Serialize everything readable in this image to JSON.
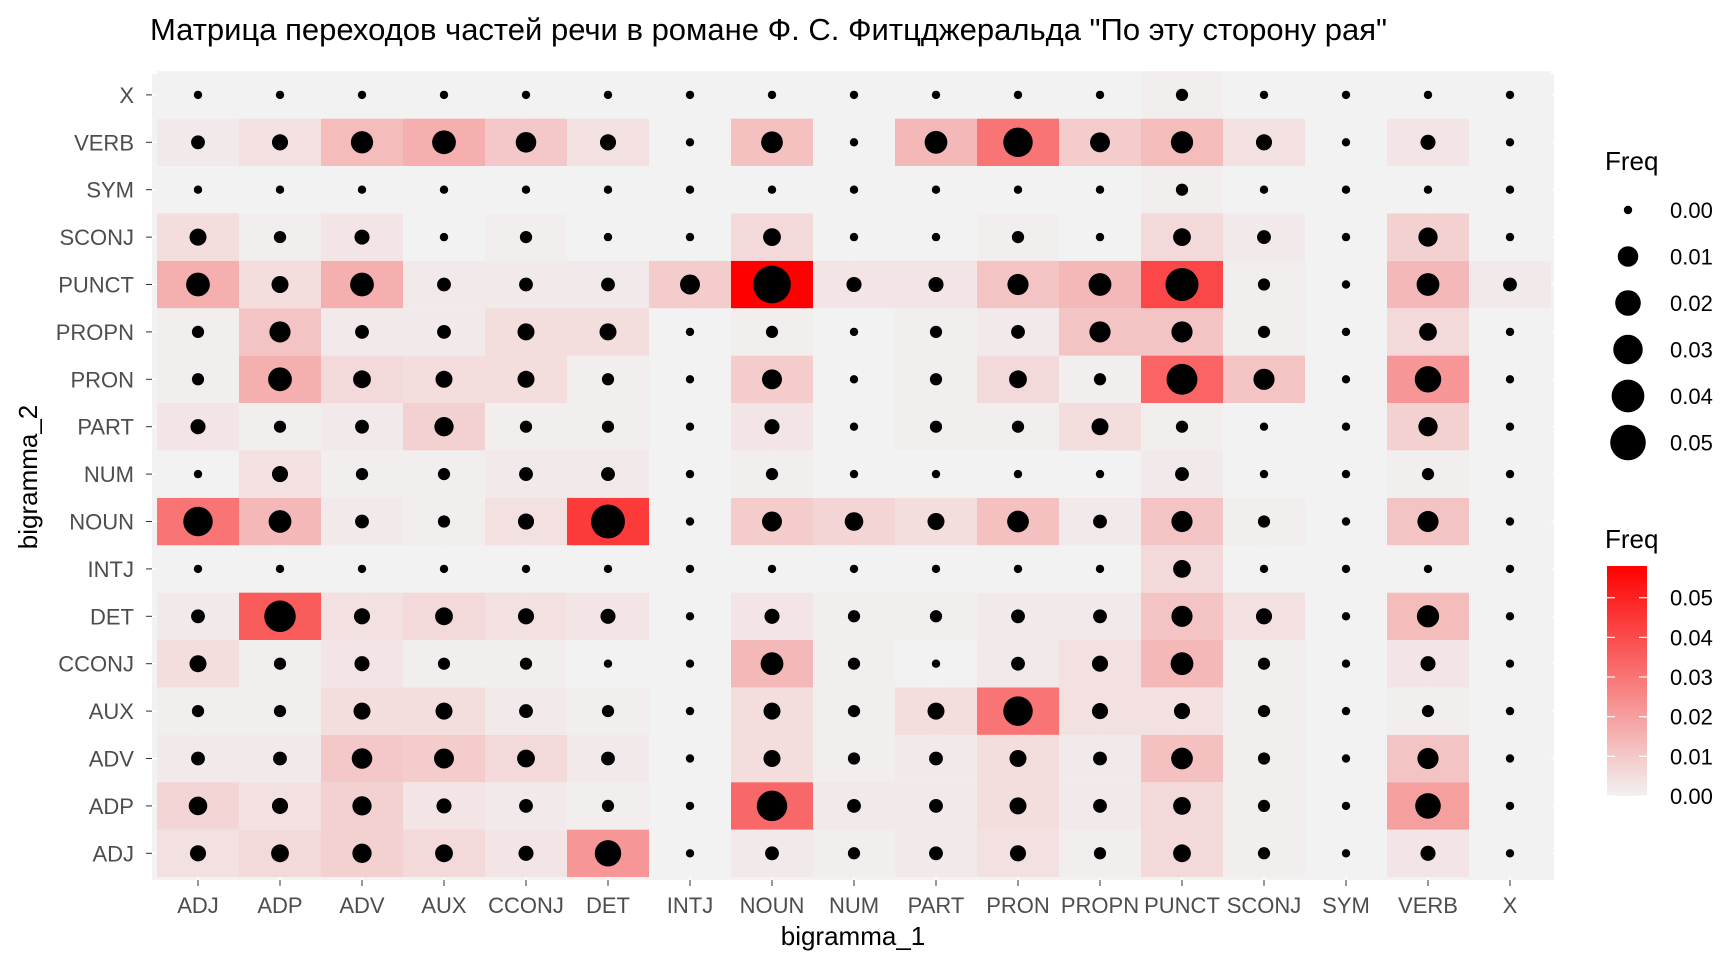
{
  "chart_data": {
    "type": "heatmap",
    "title": "Матрица переходов частей речи в романе Ф. С. Фитцджеральда \"По эту сторону рая\"",
    "xlabel": "bigramma_1",
    "ylabel": "bigramma_2",
    "x_categories": [
      "ADJ",
      "ADP",
      "ADV",
      "AUX",
      "CCONJ",
      "DET",
      "INTJ",
      "NOUN",
      "NUM",
      "PART",
      "PRON",
      "PROPN",
      "PUNCT",
      "SCONJ",
      "SYM",
      "VERB",
      "X"
    ],
    "y_categories": [
      "ADJ",
      "ADP",
      "ADV",
      "AUX",
      "CCONJ",
      "DET",
      "INTJ",
      "NOUN",
      "NUM",
      "PART",
      "PRON",
      "PROPN",
      "PUNCT",
      "SCONJ",
      "SYM",
      "VERB",
      "X"
    ],
    "values": [
      [
        0.004,
        0.006,
        0.008,
        0.006,
        0.003,
        0.022,
        0.0,
        0.002,
        0.001,
        0.002,
        0.004,
        0.001,
        0.006,
        0.001,
        0.0,
        0.003,
        0.0
      ],
      [
        0.007,
        0.004,
        0.008,
        0.003,
        0.002,
        0.001,
        0.0,
        0.033,
        0.002,
        0.002,
        0.005,
        0.002,
        0.006,
        0.001,
        0.0,
        0.02,
        0.0
      ],
      [
        0.002,
        0.002,
        0.01,
        0.009,
        0.006,
        0.002,
        0.0,
        0.005,
        0.001,
        0.002,
        0.005,
        0.002,
        0.012,
        0.001,
        0.0,
        0.011,
        0.0
      ],
      [
        0.001,
        0.001,
        0.005,
        0.005,
        0.002,
        0.001,
        0.0,
        0.005,
        0.001,
        0.005,
        0.03,
        0.004,
        0.004,
        0.001,
        0.0,
        0.001,
        0.0
      ],
      [
        0.005,
        0.001,
        0.003,
        0.001,
        0.001,
        0.0,
        0.0,
        0.014,
        0.001,
        0.0,
        0.002,
        0.004,
        0.014,
        0.001,
        0.0,
        0.003,
        0.0
      ],
      [
        0.002,
        0.036,
        0.004,
        0.006,
        0.004,
        0.003,
        0.0,
        0.003,
        0.001,
        0.001,
        0.002,
        0.002,
        0.011,
        0.004,
        0.0,
        0.013,
        0.0
      ],
      [
        0.0,
        0.0,
        0.0,
        0.0,
        0.0,
        0.0,
        0.0,
        0.0,
        0.0,
        0.0,
        0.0,
        0.0,
        0.006,
        0.0,
        0.0,
        0.0,
        0.0
      ],
      [
        0.03,
        0.014,
        0.002,
        0.001,
        0.004,
        0.044,
        0.0,
        0.009,
        0.007,
        0.005,
        0.012,
        0.002,
        0.011,
        0.001,
        0.0,
        0.011,
        0.0
      ],
      [
        0.0,
        0.004,
        0.001,
        0.001,
        0.002,
        0.002,
        0.0,
        0.001,
        0.0,
        0.0,
        0.0,
        0.0,
        0.002,
        0.0,
        0.0,
        0.001,
        0.0
      ],
      [
        0.003,
        0.001,
        0.002,
        0.008,
        0.001,
        0.001,
        0.0,
        0.003,
        0.0,
        0.001,
        0.001,
        0.005,
        0.001,
        0.0,
        0.0,
        0.008,
        0.0
      ],
      [
        0.001,
        0.016,
        0.006,
        0.005,
        0.005,
        0.001,
        0.0,
        0.009,
        0.0,
        0.001,
        0.006,
        0.001,
        0.034,
        0.011,
        0.0,
        0.022,
        0.0
      ],
      [
        0.001,
        0.011,
        0.002,
        0.002,
        0.005,
        0.005,
        0.0,
        0.001,
        0.0,
        0.001,
        0.002,
        0.011,
        0.011,
        0.001,
        0.0,
        0.006,
        0.0
      ],
      [
        0.016,
        0.005,
        0.016,
        0.002,
        0.002,
        0.002,
        0.009,
        0.058,
        0.003,
        0.003,
        0.011,
        0.014,
        0.041,
        0.001,
        0.0,
        0.014,
        0.002
      ],
      [
        0.005,
        0.001,
        0.003,
        0.0,
        0.001,
        0.0,
        0.0,
        0.006,
        0.0,
        0.0,
        0.001,
        0.0,
        0.006,
        0.002,
        0.0,
        0.008,
        0.0
      ],
      [
        0.0,
        0.0,
        0.0,
        0.0,
        0.0,
        0.0,
        0.0,
        0.0,
        0.0,
        0.0,
        0.0,
        0.0,
        0.001,
        0.0,
        0.0,
        0.0,
        0.0
      ],
      [
        0.002,
        0.004,
        0.013,
        0.016,
        0.01,
        0.004,
        0.0,
        0.012,
        0.0,
        0.014,
        0.03,
        0.009,
        0.013,
        0.004,
        0.0,
        0.003,
        0.0
      ],
      [
        0.0,
        0.0,
        0.0,
        0.0,
        0.0,
        0.0,
        0.0,
        0.0,
        0.0,
        0.0,
        0.0,
        0.0,
        0.001,
        0.0,
        0.0,
        0.0,
        0.0
      ]
    ],
    "fill_scale": {
      "low": "#F2F2F2",
      "high": "#FF0000",
      "min": 0,
      "max": 0.058
    },
    "legend_size": {
      "title": "Freq",
      "breaks": [
        0.0,
        0.01,
        0.02,
        0.03,
        0.04,
        0.05
      ],
      "labels": [
        "0.00",
        "0.01",
        "0.02",
        "0.03",
        "0.04",
        "0.05"
      ]
    },
    "legend_fill": {
      "title": "Freq",
      "breaks": [
        0.0,
        0.01,
        0.02,
        0.03,
        0.04,
        0.05
      ],
      "labels": [
        "0.00",
        "0.01",
        "0.02",
        "0.03",
        "0.04",
        "0.05"
      ]
    },
    "panel_background": "#F2F2F2",
    "point_color": "#000000",
    "legend_position": "right"
  }
}
